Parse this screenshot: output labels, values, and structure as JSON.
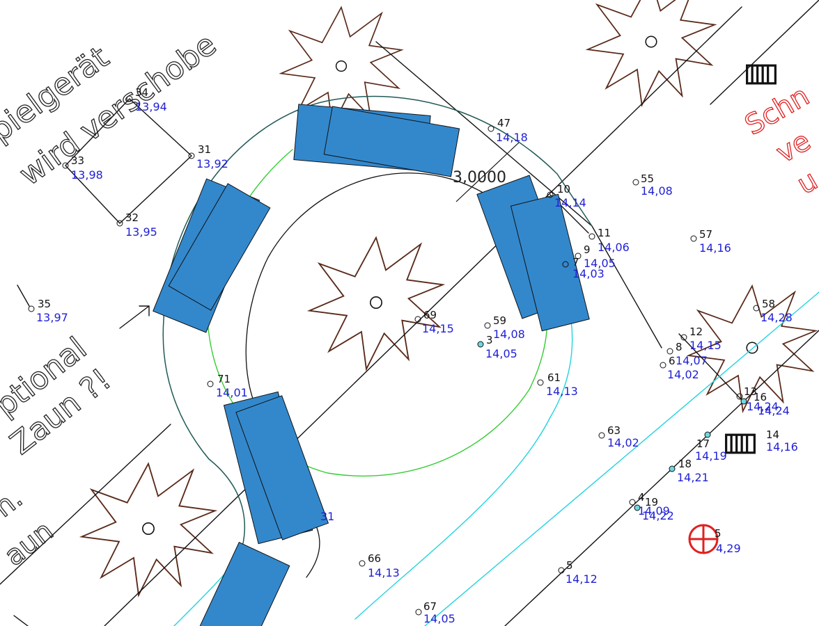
{
  "drawing": {
    "colors": {
      "background": "#ffffff",
      "line": "#111111",
      "tree": "#5a2a1a",
      "elevation_text": "#1f1fd6",
      "annotation_red": "#e02020",
      "green_curve": "#33cc33",
      "cyan_curve": "#22d3e0",
      "teal_curve": "#1f5a55",
      "vehicle_fill": "#3388cc"
    },
    "notes": {
      "spielgeraet": "pielgerät",
      "verschoben": "wird verschobe",
      "optional": "ptional",
      "zaun_q": "Zaun ?!",
      "left_h": "h.",
      "left_zaun": "aun",
      "red_1": "Schn",
      "red_2": "ve",
      "red_3": "u"
    },
    "dimension": {
      "value": "3,0000"
    },
    "points": [
      {
        "num": "34",
        "elev": "13,94"
      },
      {
        "num": "33",
        "elev": "13,98"
      },
      {
        "num": "31",
        "elev": "13,92"
      },
      {
        "num": "32",
        "elev": "13,95"
      },
      {
        "num": "35",
        "elev": "13,97"
      },
      {
        "num": "47",
        "elev": "14,18"
      },
      {
        "num": "10",
        "elev": "14,14"
      },
      {
        "num": "11",
        "elev": "14,06"
      },
      {
        "num": "9",
        "elev": "14,05"
      },
      {
        "num": "7",
        "elev": "14,03"
      },
      {
        "num": "55",
        "elev": "14,08"
      },
      {
        "num": "57",
        "elev": "14,16"
      },
      {
        "num": "58",
        "elev": "14,28"
      },
      {
        "num": "69",
        "elev": "14,15"
      },
      {
        "num": "59",
        "elev": "14,08"
      },
      {
        "num": "3",
        "elev": "14,05"
      },
      {
        "num": "12",
        "elev": "14,15"
      },
      {
        "num": "8",
        "elev": "14,07"
      },
      {
        "num": "6",
        "elev": "14,02"
      },
      {
        "num": "13",
        "elev": "14,24"
      },
      {
        "num": "16",
        "elev": "14,24"
      },
      {
        "num": "71",
        "elev": "14,01"
      },
      {
        "num": "61",
        "elev": "14,13"
      },
      {
        "num": "63",
        "elev": "14,02"
      },
      {
        "num": "17",
        "elev": "14,19"
      },
      {
        "num": "14",
        "elev": "14,16"
      },
      {
        "num": "18",
        "elev": "14,21"
      },
      {
        "num": "4",
        "elev": "14,09"
      },
      {
        "num": "19",
        "elev": "14,22"
      },
      {
        "num": "5",
        "elev": "4,29"
      },
      {
        "num": "66",
        "elev": "14,13"
      },
      {
        "num": "5",
        "elev": "14,12"
      },
      {
        "num": "67",
        "elev": "14,05"
      },
      {
        "num": "",
        "elev": "31"
      }
    ],
    "icons": [
      "hydrant-grate-icon",
      "hydrant-grate-icon",
      "survey-target-icon",
      "tree-icon"
    ]
  }
}
